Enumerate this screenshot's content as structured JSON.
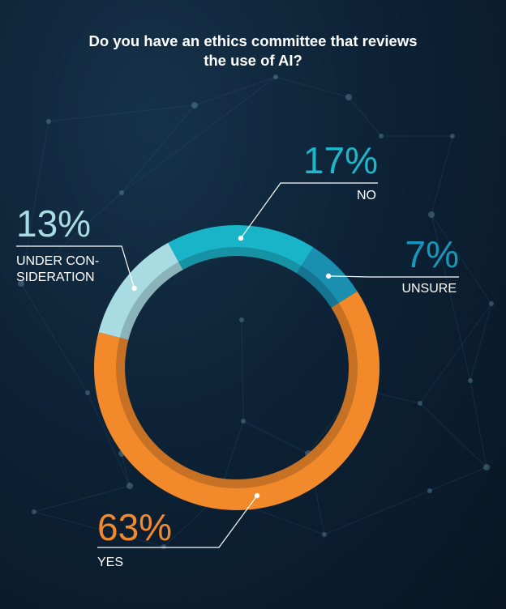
{
  "title_lines": [
    "Do you have an ethics committee that reviews",
    "the use of AI?"
  ],
  "chart_data": {
    "type": "pie",
    "style": "donut",
    "title": "Do you have an ethics committee that reviews the use of AI?",
    "slices": [
      {
        "label": "NO",
        "value": 17,
        "value_text": "17%",
        "color": "#1ab4c8",
        "value_color": "#1fb6ca"
      },
      {
        "label": "UNSURE",
        "value": 7,
        "value_text": "7%",
        "color": "#1a8fb0",
        "value_color": "#1a96b8"
      },
      {
        "label": "YES",
        "value": 63,
        "value_text": "63%",
        "color": "#f28a2b",
        "value_color": "#f28a2b"
      },
      {
        "label": "UNDER CON-|SIDERATION",
        "value": 13,
        "value_text": "13%",
        "color": "#a9dbe3",
        "value_color": "#a9dbe3"
      }
    ]
  },
  "colors": {
    "background": "#0d2236",
    "label_text": "#ffffff",
    "leader_line": "#ffffff"
  }
}
